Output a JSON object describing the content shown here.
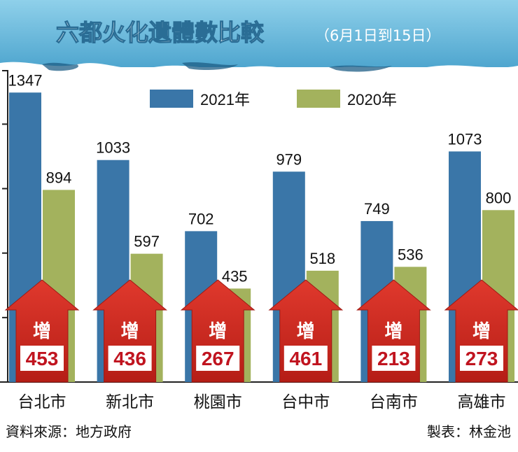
{
  "chart_data": {
    "type": "bar",
    "title": "六都火化遺體數比較",
    "subtitle": "（6月1日到15日）",
    "categories": [
      "台北市",
      "新北市",
      "桃園市",
      "台中市",
      "台南市",
      "高雄市"
    ],
    "series": [
      {
        "name": "2021年",
        "values": [
          1347,
          1033,
          702,
          979,
          749,
          1073
        ]
      },
      {
        "name": "2020年",
        "values": [
          894,
          597,
          435,
          518,
          536,
          800
        ]
      }
    ],
    "annotations": {
      "label": "增",
      "values": [
        453,
        436,
        267,
        461,
        213,
        273
      ]
    },
    "ylim": [
      0,
      1400
    ],
    "legend_position": "top-center"
  },
  "footer": {
    "source": "資料來源：地方政府",
    "credit": "製表：林金池"
  },
  "colors": {
    "series_2021": "#3a76a8",
    "series_2020": "#a3b25d",
    "arrow": "#cf2a22",
    "arrow_box": "#ffffff",
    "arrow_text": "#c0141f",
    "banner": "#6cb9d8",
    "banner_wave": "#1d5e86",
    "title_text": "#ffffff",
    "axis": "#222222",
    "text": "#111111"
  }
}
